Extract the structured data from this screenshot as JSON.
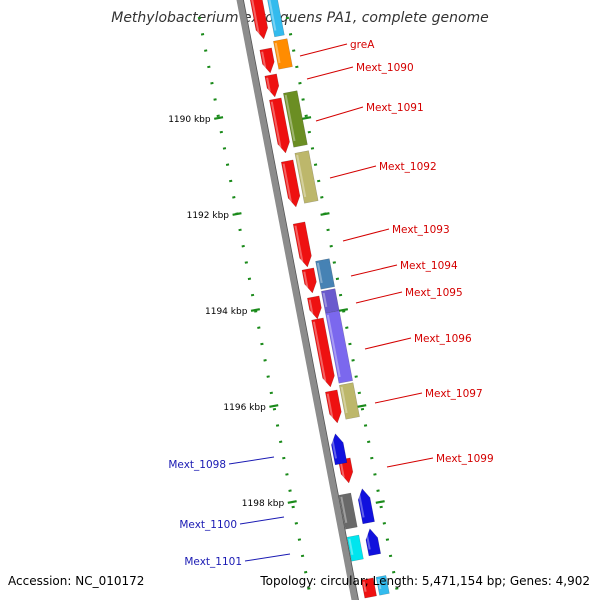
{
  "title": "Methylobacterium extorquens PA1, complete genome",
  "colors": {
    "backbone": "#8c8c8c",
    "backbone_edge": "#555555",
    "tick": "#1a8a1a",
    "label_forward": "#d40000",
    "label_reverse": "#1a1ab3",
    "leader_forward": "#d40000",
    "leader_reverse": "#1a1ab3",
    "cds_forward": "#ee1111",
    "cds_reverse": "#1111dd"
  },
  "scale_labels": [
    "1190 kbp",
    "1192 kbp",
    "1194 kbp",
    "1196 kbp",
    "1198 kbp"
  ],
  "genes": [
    {
      "name": "greA",
      "strand": "forward",
      "cog_color": "#ff8c00"
    },
    {
      "name": "Mext_1090",
      "strand": "forward",
      "cog_color": ""
    },
    {
      "name": "Mext_1091",
      "strand": "forward",
      "cog_color": "#6b8e23"
    },
    {
      "name": "Mext_1092",
      "strand": "forward",
      "cog_color": "#bdb76b"
    },
    {
      "name": "Mext_1093",
      "strand": "forward",
      "cog_color": ""
    },
    {
      "name": "Mext_1094",
      "strand": "forward",
      "cog_color": "#4682b4"
    },
    {
      "name": "Mext_1095",
      "strand": "forward",
      "cog_color": "#6a5acd"
    },
    {
      "name": "Mext_1096",
      "strand": "forward",
      "cog_color": "#7b68ee"
    },
    {
      "name": "Mext_1097",
      "strand": "forward",
      "cog_color": "#bdb76b"
    },
    {
      "name": "Mext_1099",
      "strand": "forward",
      "cog_color": ""
    },
    {
      "name": "Mext_1098",
      "strand": "reverse",
      "cog_color": ""
    },
    {
      "name": "Mext_1100",
      "strand": "reverse",
      "cog_color": "#696969"
    },
    {
      "name": "Mext_1101",
      "strand": "reverse",
      "cog_color": "#00e5ee"
    }
  ],
  "footer": {
    "accession": "Accession: NC_010172",
    "stats": "Topology: circular; Length: 5,471,154 bp; Genes: 4,902"
  }
}
